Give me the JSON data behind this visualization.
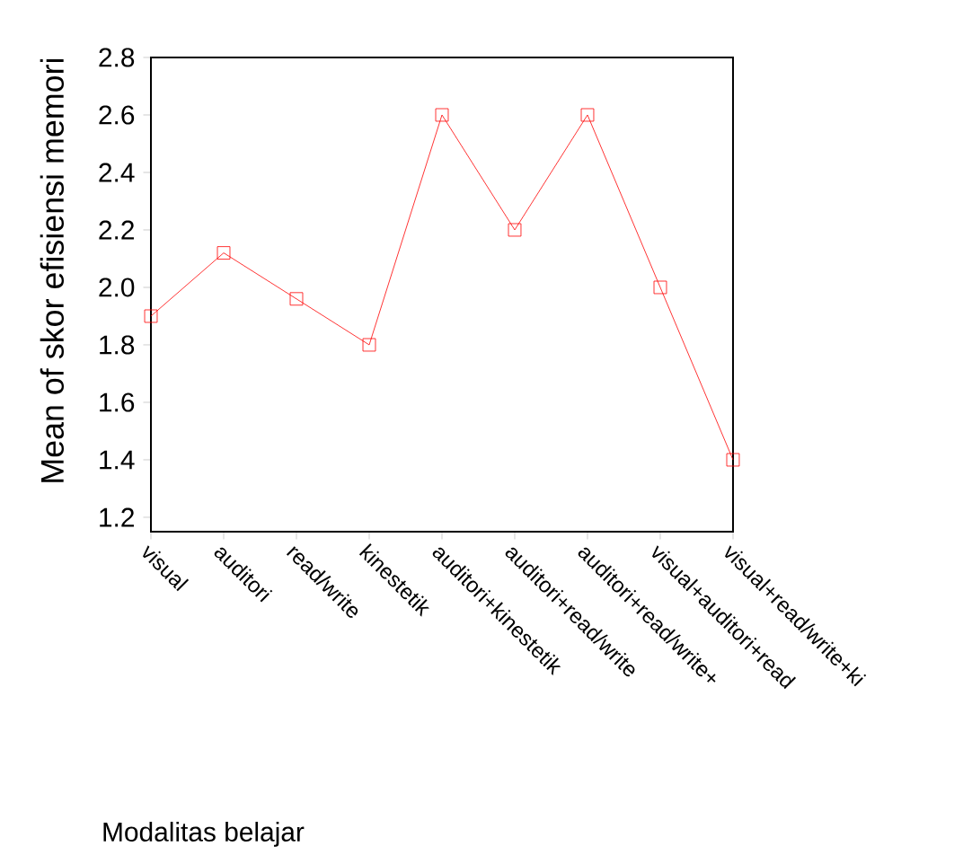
{
  "chart_data": {
    "type": "line",
    "xlabel": "Modalitas belajar",
    "ylabel": "Mean of skor efisiensi memori",
    "categories": [
      "visual",
      "auditori",
      "read/write",
      "kinestetik",
      "auditori+kinestetik",
      "auditori+read/write",
      "auditori+read/write+",
      "visual+auditori+read",
      "visual+read/write+ki"
    ],
    "series": [
      {
        "color": "#ff0000",
        "values": [
          1.9,
          2.12,
          1.96,
          1.8,
          2.6,
          2.2,
          2.6,
          2.0,
          1.4
        ]
      }
    ],
    "ylim": [
      1.15,
      2.8
    ],
    "yticks": [
      1.2,
      1.4,
      1.6,
      1.8,
      {
        "value": 2.0,
        "label": "2.0"
      },
      2.2,
      2.4,
      2.6,
      2.8
    ],
    "marker": "square",
    "line_style": "solid",
    "grid": false
  }
}
